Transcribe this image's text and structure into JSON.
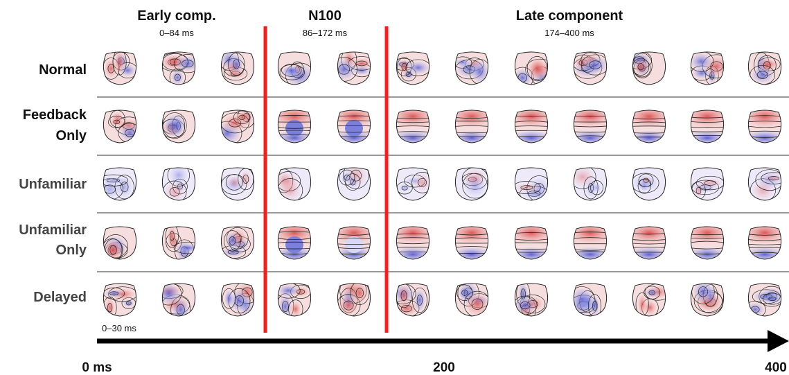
{
  "headers": [
    {
      "title": "Early comp.",
      "range": "0–84 ms"
    },
    {
      "title": "N100",
      "range": "86–172 ms"
    },
    {
      "title": "Late component",
      "range": "174–400 ms"
    }
  ],
  "rows": [
    {
      "line1": "Normal",
      "line2": ""
    },
    {
      "line1": "Feedback",
      "line2": "Only"
    },
    {
      "line1": "Unfamiliar",
      "line2": ""
    },
    {
      "line1": "Unfamiliar",
      "line2": "Only"
    },
    {
      "line1": "Delayed",
      "line2": ""
    }
  ],
  "window_label": "0–30 ms",
  "axis": {
    "start": "0 ms",
    "mid": "200",
    "end": "400"
  },
  "colors": {
    "boundary": "#ff1a1a",
    "positive": "#e06060",
    "negative": "#5a62d8",
    "contour": "#222222",
    "text": "#111111"
  }
}
